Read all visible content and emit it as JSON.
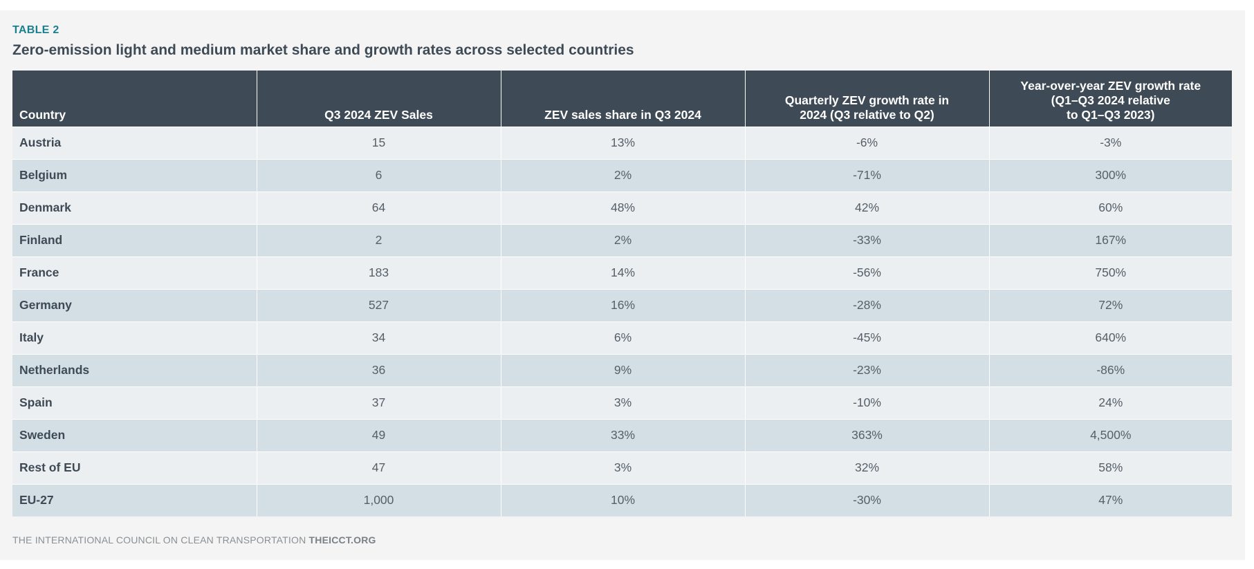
{
  "header": {
    "table_label": "TABLE 2",
    "title": "Zero-emission light and medium market share and growth rates across selected countries"
  },
  "table": {
    "columns": [
      {
        "lines": [
          "Country"
        ]
      },
      {
        "lines": [
          "Q3 2024 ZEV Sales"
        ]
      },
      {
        "lines": [
          "ZEV sales share in Q3 2024"
        ]
      },
      {
        "lines": [
          "Quarterly ZEV growth rate in",
          "2024 (Q3 relative to Q2)"
        ]
      },
      {
        "lines": [
          "Year-over-year ZEV growth rate",
          "(Q1–Q3 2024 relative",
          "to Q1–Q3 2023)"
        ]
      }
    ],
    "rows": [
      [
        "Austria",
        "15",
        "13%",
        "-6%",
        "-3%"
      ],
      [
        "Belgium",
        "6",
        "2%",
        "-71%",
        "300%"
      ],
      [
        "Denmark",
        "64",
        "48%",
        "42%",
        "60%"
      ],
      [
        "Finland",
        "2",
        "2%",
        "-33%",
        "167%"
      ],
      [
        "France",
        "183",
        "14%",
        "-56%",
        "750%"
      ],
      [
        "Germany",
        "527",
        "16%",
        "-28%",
        "72%"
      ],
      [
        "Italy",
        "34",
        "6%",
        "-45%",
        "640%"
      ],
      [
        "Netherlands",
        "36",
        "9%",
        "-23%",
        "-86%"
      ],
      [
        "Spain",
        "37",
        "3%",
        "-10%",
        "24%"
      ],
      [
        "Sweden",
        "49",
        "33%",
        "363%",
        "4,500%"
      ],
      [
        "Rest of EU",
        "47",
        "3%",
        "32%",
        "58%"
      ],
      [
        "EU-27",
        "1,000",
        "10%",
        "-30%",
        "47%"
      ]
    ]
  },
  "footer": {
    "organization": "THE INTERNATIONAL COUNCIL ON CLEAN TRANSPORTATION",
    "website": "THEICCT.ORG"
  },
  "colors": {
    "header_background": "#3e4a55",
    "label_accent": "#1a7f8e",
    "row_light": "#eceff1",
    "row_dark": "#d3dfe4",
    "page_background": "#f4f4f4"
  }
}
